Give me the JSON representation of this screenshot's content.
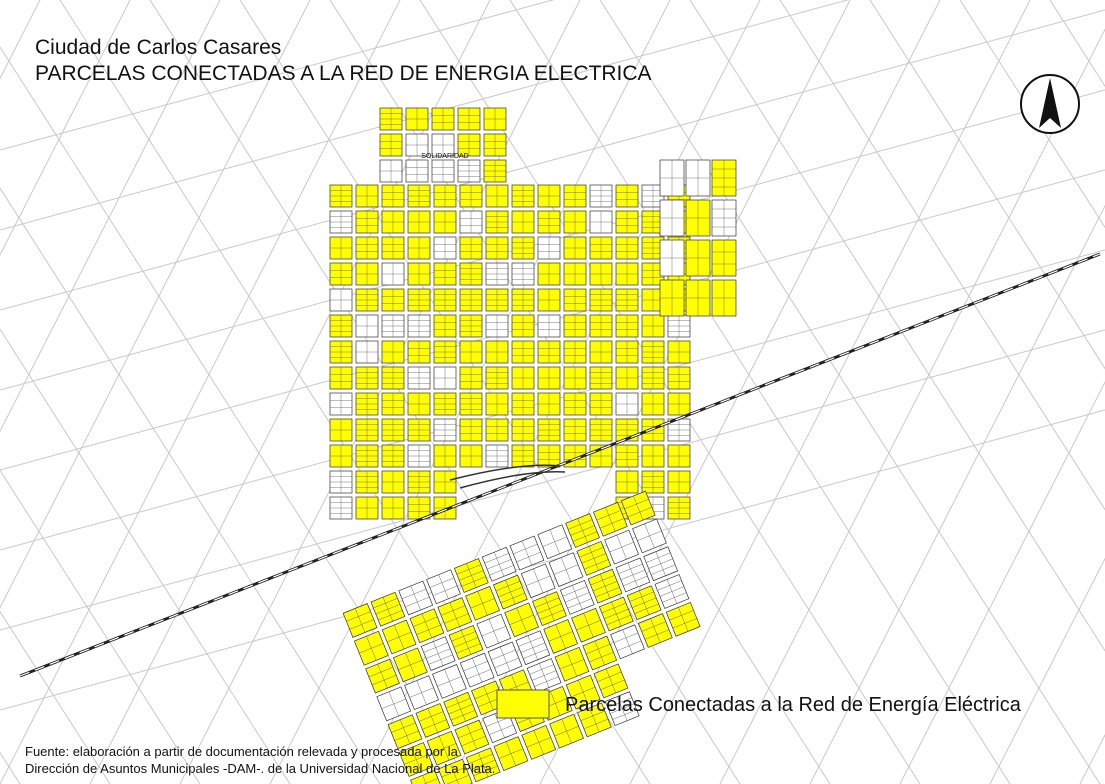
{
  "header": {
    "title": [
      "Ciudad de Carlos Casares",
      "PARCELAS CONECTADAS A LA RED DE ENERGIA ELECTRICA"
    ]
  },
  "map": {
    "labels": [
      "SOLIDARIDAD"
    ]
  },
  "legend": {
    "label": "Parcelas Conectadas a la Red de Energía Eléctrica"
  },
  "source": {
    "lines": [
      "Fuente: elaboración a partir de documentación  relevada y procesada por la",
      "Dirección de Asuntos Municipales -DAM-. de la Universidad Nacional de La Plata."
    ]
  }
}
